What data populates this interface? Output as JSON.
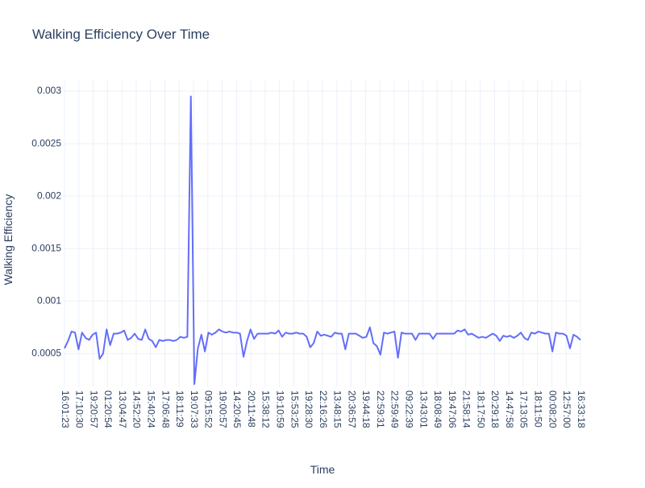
{
  "chart_data": {
    "type": "line",
    "title": "Walking Efficiency Over Time",
    "xlabel": "Time",
    "ylabel": "Walking Efficiency",
    "ylim": [
      0.00018,
      0.0031
    ],
    "y_ticks": [
      0.0005,
      0.001,
      0.0015,
      0.002,
      0.0025,
      0.003
    ],
    "y_tick_labels": [
      "0.0005",
      "0.001",
      "0.0015",
      "0.002",
      "0.0025",
      "0.003"
    ],
    "x_tick_labels": [
      "16:01:23",
      "17:10:30",
      "19:20:57",
      "01:20:54",
      "13:04:47",
      "14:52:20",
      "15:40:24",
      "17:06:48",
      "18:11:29",
      "19:07:33",
      "09:15:52",
      "19:00:57",
      "14:20:45",
      "20:11:48",
      "15:38:12",
      "19:10:59",
      "15:53:25",
      "19:28:30",
      "22:16:26",
      "13:48:15",
      "20:36:57",
      "19:44:18",
      "22:59:31",
      "22:59:49",
      "09:22:39",
      "13:43:01",
      "18:08:49",
      "19:47:06",
      "21:58:14",
      "18:17:50",
      "20:29:18",
      "14:47:58",
      "17:13:05",
      "18:11:50",
      "00:08:20",
      "12:57:00",
      "16:33:18"
    ],
    "grid": true,
    "legend": "none",
    "line_color": "#636efa",
    "series": [
      {
        "values": [
          0.00055,
          0.00062,
          0.00071,
          0.0007,
          0.00054,
          0.0007,
          0.00065,
          0.00063,
          0.00068,
          0.0007,
          0.00045,
          0.0005,
          0.00073,
          0.00058,
          0.00069,
          0.00069,
          0.0007,
          0.00072,
          0.00063,
          0.00065,
          0.00069,
          0.00064,
          0.00063,
          0.00073,
          0.00064,
          0.00062,
          0.00056,
          0.00063,
          0.00062,
          0.00063,
          0.00063,
          0.00062,
          0.00063,
          0.00066,
          0.00065,
          0.00066,
          0.00295,
          0.00021,
          0.00055,
          0.00068,
          0.00052,
          0.0007,
          0.00068,
          0.0007,
          0.00073,
          0.00071,
          0.0007,
          0.00071,
          0.0007,
          0.0007,
          0.00069,
          0.00047,
          0.00062,
          0.00073,
          0.00064,
          0.00069,
          0.00069,
          0.00069,
          0.00069,
          0.0007,
          0.00069,
          0.00072,
          0.00066,
          0.0007,
          0.00069,
          0.00069,
          0.0007,
          0.00069,
          0.00069,
          0.00066,
          0.00056,
          0.0006,
          0.00071,
          0.00067,
          0.00068,
          0.00067,
          0.00066,
          0.0007,
          0.00069,
          0.00069,
          0.00054,
          0.00069,
          0.00069,
          0.00069,
          0.00067,
          0.00065,
          0.00066,
          0.00075,
          0.0006,
          0.00057,
          0.00049,
          0.0007,
          0.00069,
          0.0007,
          0.00071,
          0.00046,
          0.0007,
          0.00069,
          0.00069,
          0.00069,
          0.00063,
          0.00069,
          0.00069,
          0.00069,
          0.00069,
          0.00064,
          0.00069,
          0.00069,
          0.00069,
          0.00069,
          0.00069,
          0.00069,
          0.00072,
          0.00071,
          0.00073,
          0.00068,
          0.00069,
          0.00067,
          0.00065,
          0.00066,
          0.00065,
          0.00067,
          0.00069,
          0.00067,
          0.00062,
          0.00067,
          0.00066,
          0.00067,
          0.00065,
          0.00067,
          0.0007,
          0.00065,
          0.00063,
          0.0007,
          0.00069,
          0.00071,
          0.0007,
          0.00069,
          0.00069,
          0.00052,
          0.0007,
          0.00069,
          0.00069,
          0.00067,
          0.00055,
          0.00068,
          0.00066,
          0.00063
        ]
      }
    ]
  }
}
